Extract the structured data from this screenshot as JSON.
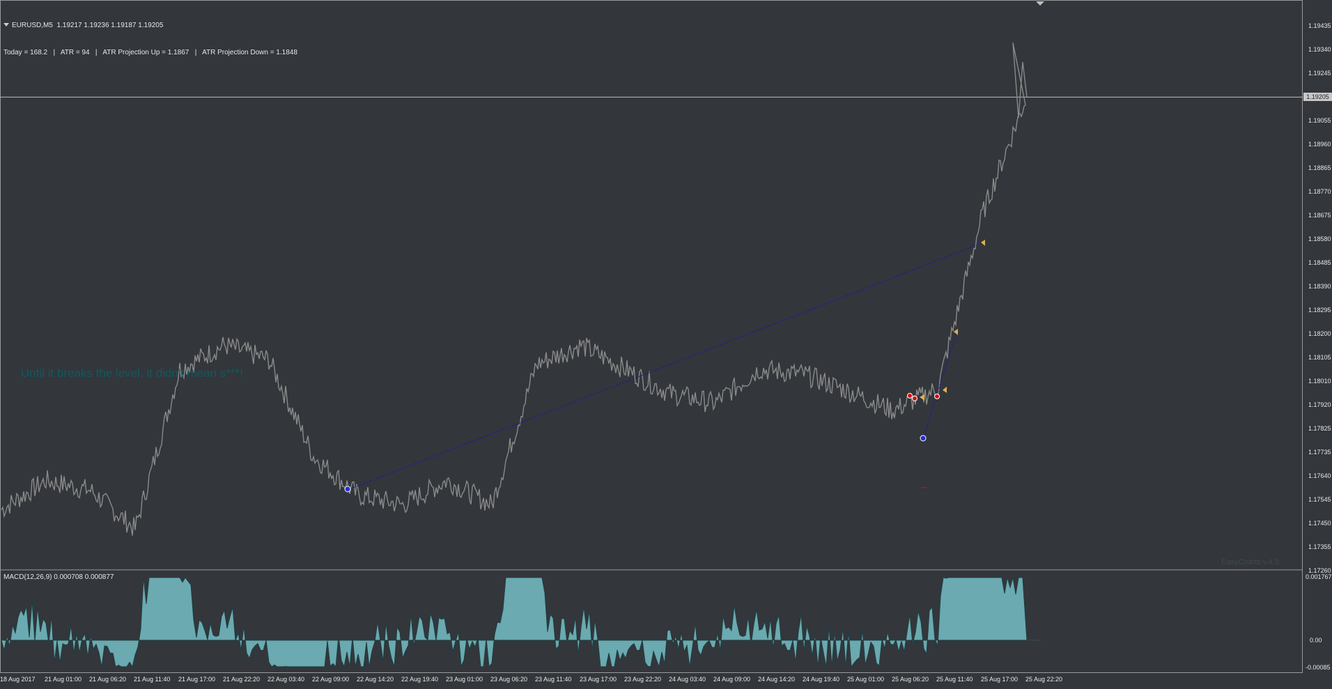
{
  "header": {
    "symbol_line": "EURUSD,M5  1.19217 1.19236 1.19187 1.19205",
    "info_line": "Today = 168.2   |   ATR = 94   |   ATR Projection Up = 1.1867   |   ATR Projection Down = 1.1848"
  },
  "price_axis": {
    "ticks": [
      "1.19435",
      "1.19340",
      "1.19245",
      "1.19150",
      "1.19055",
      "1.18960",
      "1.18865",
      "1.18770",
      "1.18675",
      "1.18580",
      "1.18485",
      "1.18390",
      "1.18295",
      "1.18200",
      "1.18105",
      "1.18010",
      "1.17920",
      "1.17825",
      "1.17735",
      "1.17640",
      "1.17545",
      "1.17450",
      "1.17355",
      "1.17260"
    ],
    "current": "1.19205"
  },
  "time_axis": {
    "ticks": [
      "18 Aug 2017",
      "21 Aug 01:00",
      "21 Aug 06:20",
      "21 Aug 11:40",
      "21 Aug 17:00",
      "21 Aug 22:20",
      "22 Aug 03:40",
      "22 Aug 09:00",
      "22 Aug 14:20",
      "22 Aug 19:40",
      "23 Aug 01:00",
      "23 Aug 06:20",
      "23 Aug 11:40",
      "23 Aug 17:00",
      "23 Aug 22:20",
      "24 Aug 03:40",
      "24 Aug 09:00",
      "24 Aug 14:20",
      "24 Aug 19:40",
      "25 Aug 01:00",
      "25 Aug 06:20",
      "25 Aug 11:40",
      "25 Aug 17:00",
      "25 Aug 22:20"
    ]
  },
  "macd": {
    "label": "MACD(12,26,9) 0.000708 0.000877",
    "ticks": [
      "0.001767",
      "0.00",
      "-0.00085"
    ]
  },
  "annotation": "Until it breaks the level, it didn't mean s***!",
  "watermark": "EasyCharts v.4.5",
  "colors": {
    "background": "#33363b",
    "price_line": "#8a8a8a",
    "trend_line": "#1a1aa8",
    "macd_fill": "#6aaab0",
    "marker_blue": "#2233cc",
    "marker_red": "#cc1111",
    "marker_gold": "#e0b050"
  },
  "chart_data": {
    "type": "line",
    "title": "EURUSD,M5",
    "xlabel": "",
    "ylabel": "",
    "ylim": [
      1.1726,
      1.1952
    ],
    "x": [
      "18 Aug 2017",
      "21 Aug 01:00",
      "21 Aug 06:20",
      "21 Aug 11:40",
      "21 Aug 17:00",
      "21 Aug 22:20",
      "22 Aug 03:40",
      "22 Aug 09:00",
      "22 Aug 14:20",
      "22 Aug 19:40",
      "23 Aug 01:00",
      "23 Aug 06:20",
      "23 Aug 11:40",
      "23 Aug 17:00",
      "23 Aug 22:20",
      "24 Aug 03:40",
      "24 Aug 09:00",
      "24 Aug 14:20",
      "24 Aug 19:40",
      "25 Aug 01:00",
      "25 Aug 06:20",
      "25 Aug 11:40",
      "25 Aug 17:00",
      "25 Aug 22:20"
    ],
    "series": [
      {
        "name": "EURUSD",
        "values": [
          1.175,
          1.1762,
          1.1758,
          1.1742,
          1.1808,
          1.1818,
          1.1812,
          1.1772,
          1.1756,
          1.1752,
          1.1762,
          1.1752,
          1.181,
          1.1818,
          1.1808,
          1.1798,
          1.1794,
          1.1808,
          1.1806,
          1.1799,
          1.1791,
          1.18,
          1.1872,
          1.1921
        ]
      }
    ]
  }
}
